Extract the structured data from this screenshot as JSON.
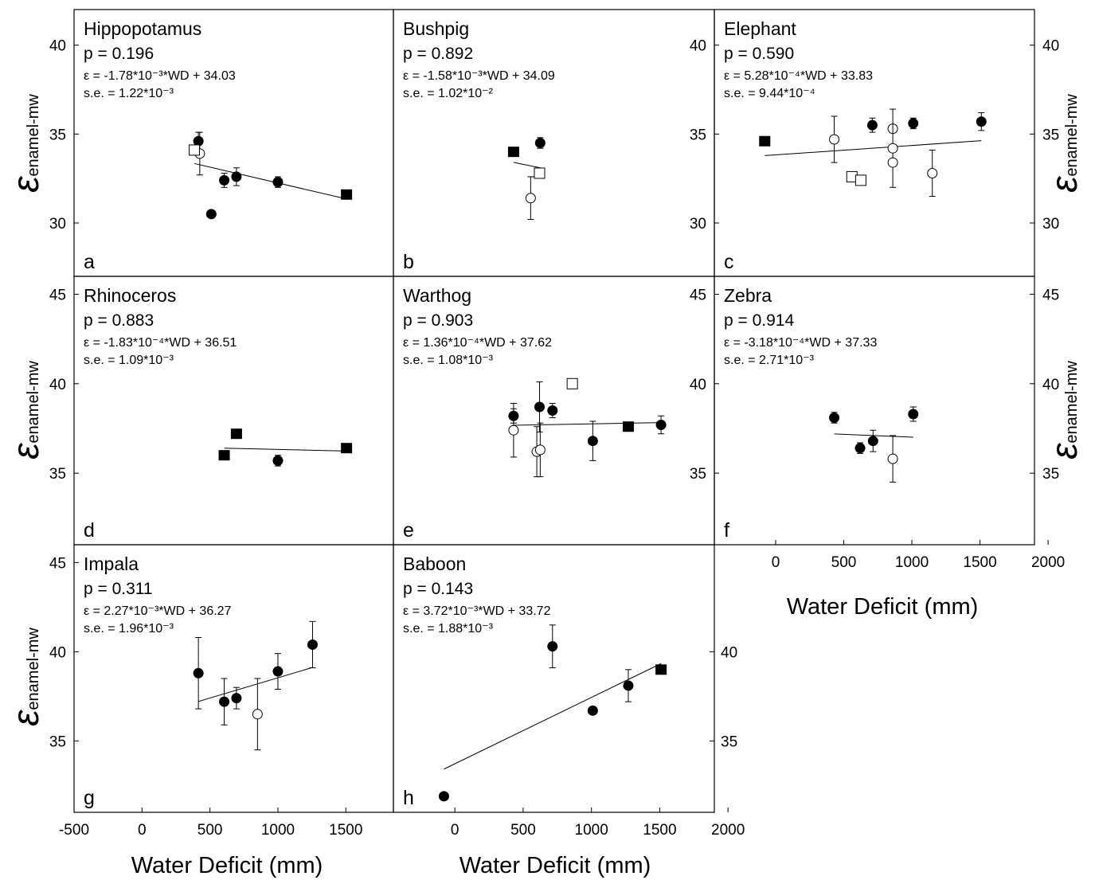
{
  "figure": {
    "x_axis_label": "Water Deficit (mm)",
    "y_axis_symbol": "ε",
    "y_axis_subscript": "enamel-mw"
  },
  "chart_data": [
    {
      "type": "scatter",
      "id": "a",
      "letter": "a",
      "title": "Hippopotamus",
      "stats": {
        "p": "p = 0.196",
        "eq": "ε = -1.78*10⁻³*WD + 34.03",
        "se": "s.e. = 1.22*10⁻³"
      },
      "xlim": [
        -500,
        1850
      ],
      "ylim": [
        27,
        42
      ],
      "yticks": [
        30,
        35,
        40
      ],
      "points": [
        {
          "x": 415,
          "y": 34.6,
          "m": "filled_circle",
          "err": 0.5
        },
        {
          "x": 425,
          "y": 33.9,
          "m": "open_circle",
          "err": 1.2
        },
        {
          "x": 385,
          "y": 34.1,
          "m": "open_square"
        },
        {
          "x": 510,
          "y": 30.5,
          "m": "filled_circle"
        },
        {
          "x": 605,
          "y": 32.4,
          "m": "filled_circle",
          "err": 0.4
        },
        {
          "x": 695,
          "y": 32.6,
          "m": "filled_circle",
          "err": 0.5
        },
        {
          "x": 1000,
          "y": 32.3,
          "m": "filled_circle",
          "err": 0.3
        },
        {
          "x": 1505,
          "y": 31.6,
          "m": "filled_square"
        }
      ],
      "fit": {
        "slope": -0.00178,
        "intercept": 34.03,
        "x": [
          385,
          1510
        ]
      }
    },
    {
      "type": "scatter",
      "id": "b",
      "letter": "b",
      "title": "Bushpig",
      "stats": {
        "p": "p = 0.892",
        "eq": "ε = -1.58*10⁻³*WD + 34.09",
        "se": "s.e. = 1.02*10⁻²"
      },
      "xlim": [
        -450,
        1900
      ],
      "ylim": [
        27,
        42
      ],
      "yticks": [],
      "points": [
        {
          "x": 430,
          "y": 34.0,
          "m": "filled_square"
        },
        {
          "x": 625,
          "y": 34.5,
          "m": "filled_circle",
          "err": 0.3
        },
        {
          "x": 620,
          "y": 32.8,
          "m": "open_square"
        },
        {
          "x": 555,
          "y": 31.4,
          "m": "open_circle",
          "err": 1.2
        }
      ],
      "fit": {
        "slope": -0.00158,
        "intercept": 34.09,
        "x": [
          430,
          625
        ]
      }
    },
    {
      "type": "scatter",
      "id": "c",
      "letter": "c",
      "title": "Elephant",
      "stats": {
        "p": "p = 0.590",
        "eq": "ε = 5.28*10⁻⁴*WD + 33.83",
        "se": "s.e. = 9.44*10⁻⁴"
      },
      "xlim": [
        -450,
        1900
      ],
      "ylim": [
        27,
        42
      ],
      "yticks": [
        30,
        35,
        40
      ],
      "points": [
        {
          "x": -80,
          "y": 34.6,
          "m": "filled_square"
        },
        {
          "x": 430,
          "y": 34.7,
          "m": "open_circle",
          "err": 1.3
        },
        {
          "x": 710,
          "y": 35.5,
          "m": "filled_circle",
          "err": 0.4
        },
        {
          "x": 560,
          "y": 32.6,
          "m": "open_square"
        },
        {
          "x": 625,
          "y": 32.4,
          "m": "open_square"
        },
        {
          "x": 860,
          "y": 35.3,
          "m": "open_circle"
        },
        {
          "x": 860,
          "y": 34.2,
          "m": "open_circle",
          "err": 2.2
        },
        {
          "x": 860,
          "y": 33.4,
          "m": "open_circle"
        },
        {
          "x": 1010,
          "y": 35.6,
          "m": "filled_circle",
          "err": 0.3
        },
        {
          "x": 1150,
          "y": 32.8,
          "m": "open_circle",
          "err": 1.3
        },
        {
          "x": 1510,
          "y": 35.7,
          "m": "filled_circle",
          "err": 0.5
        }
      ],
      "fit": {
        "slope": 0.000528,
        "intercept": 33.83,
        "x": [
          -80,
          1510
        ]
      }
    },
    {
      "type": "scatter",
      "id": "d",
      "letter": "d",
      "title": "Rhinoceros",
      "stats": {
        "p": "p = 0.883",
        "eq": "ε = -1.83*10⁻⁴*WD + 36.51",
        "se": "s.e. = 1.09*10⁻³"
      },
      "xlim": [
        -500,
        1850
      ],
      "ylim": [
        31,
        46
      ],
      "yticks": [
        35,
        40,
        45
      ],
      "points": [
        {
          "x": 605,
          "y": 36.0,
          "m": "filled_square"
        },
        {
          "x": 695,
          "y": 37.2,
          "m": "filled_square"
        },
        {
          "x": 1000,
          "y": 35.7,
          "m": "filled_circle",
          "err": 0.3
        },
        {
          "x": 1505,
          "y": 36.4,
          "m": "filled_square"
        }
      ],
      "fit": {
        "slope": -0.000183,
        "intercept": 36.51,
        "x": [
          605,
          1505
        ]
      }
    },
    {
      "type": "scatter",
      "id": "e",
      "letter": "e",
      "title": "Warthog",
      "stats": {
        "p": "p = 0.903",
        "eq": "ε = 1.36*10⁻⁴*WD + 37.62",
        "se": "s.e. = 1.08*10⁻³"
      },
      "xlim": [
        -450,
        1900
      ],
      "ylim": [
        31,
        46
      ],
      "yticks": [],
      "points": [
        {
          "x": 430,
          "y": 38.2,
          "m": "filled_circle",
          "err": 0.4
        },
        {
          "x": 430,
          "y": 37.4,
          "m": "open_circle",
          "err": 1.5
        },
        {
          "x": 600,
          "y": 36.2,
          "m": "open_circle",
          "err": 1.4
        },
        {
          "x": 620,
          "y": 38.7,
          "m": "filled_circle",
          "err": 1.4
        },
        {
          "x": 625,
          "y": 36.3,
          "m": "open_circle",
          "err": 1.5
        },
        {
          "x": 715,
          "y": 38.5,
          "m": "filled_circle",
          "err": 0.4
        },
        {
          "x": 860,
          "y": 40.0,
          "m": "open_square"
        },
        {
          "x": 1010,
          "y": 36.8,
          "m": "filled_circle",
          "err": 1.1
        },
        {
          "x": 1270,
          "y": 37.6,
          "m": "filled_square"
        },
        {
          "x": 1510,
          "y": 37.7,
          "m": "filled_circle",
          "err": 0.5
        }
      ],
      "fit": {
        "slope": 0.000136,
        "intercept": 37.62,
        "x": [
          430,
          1510
        ]
      }
    },
    {
      "type": "scatter",
      "id": "f",
      "letter": "f",
      "title": "Zebra",
      "stats": {
        "p": "p = 0.914",
        "eq": "ε = -3.18*10⁻⁴*WD + 37.33",
        "se": "s.e. = 2.71*10⁻³"
      },
      "xlim": [
        -450,
        1900
      ],
      "ylim": [
        31,
        46
      ],
      "yticks": [
        35,
        40,
        45
      ],
      "xticks": [
        0,
        500,
        1000,
        1500,
        2000
      ],
      "points": [
        {
          "x": 430,
          "y": 38.1,
          "m": "filled_circle",
          "err": 0.3
        },
        {
          "x": 620,
          "y": 36.4,
          "m": "filled_circle",
          "err": 0.3
        },
        {
          "x": 715,
          "y": 36.8,
          "m": "filled_circle",
          "err": 0.6
        },
        {
          "x": 860,
          "y": 35.8,
          "m": "open_circle",
          "err": 1.3
        },
        {
          "x": 1010,
          "y": 38.3,
          "m": "filled_circle",
          "err": 0.4
        }
      ],
      "fit": {
        "slope": -0.000318,
        "intercept": 37.33,
        "x": [
          430,
          1010
        ]
      }
    },
    {
      "type": "scatter",
      "id": "g",
      "letter": "g",
      "title": "Impala",
      "stats": {
        "p": "p = 0.311",
        "eq": "ε = 2.27*10⁻³*WD + 36.27",
        "se": "s.e. = 1.96*10⁻³"
      },
      "xlim": [
        -500,
        1850
      ],
      "ylim": [
        31,
        46
      ],
      "yticks": [
        35,
        40,
        45
      ],
      "xticks": [
        -500,
        0,
        500,
        1000,
        1500
      ],
      "points": [
        {
          "x": 415,
          "y": 38.8,
          "m": "filled_circle",
          "err": 2.0
        },
        {
          "x": 605,
          "y": 37.2,
          "m": "filled_circle",
          "err": 1.3
        },
        {
          "x": 695,
          "y": 37.4,
          "m": "filled_circle",
          "err": 0.6
        },
        {
          "x": 850,
          "y": 36.5,
          "m": "open_circle",
          "err": 2.0
        },
        {
          "x": 1000,
          "y": 38.9,
          "m": "filled_circle",
          "err": 1.0
        },
        {
          "x": 1255,
          "y": 40.4,
          "m": "filled_circle",
          "err": 1.3
        }
      ],
      "fit": {
        "slope": 0.00227,
        "intercept": 36.27,
        "x": [
          415,
          1255
        ]
      }
    },
    {
      "type": "scatter",
      "id": "h",
      "letter": "h",
      "title": "Baboon",
      "stats": {
        "p": "p = 0.143",
        "eq": "ε = 3.72*10⁻³*WD + 33.72",
        "se": "s.e. = 1.88*10⁻³"
      },
      "xlim": [
        -450,
        1900
      ],
      "ylim": [
        31,
        46
      ],
      "yticks": [
        35,
        40
      ],
      "yticks_side": "right",
      "xticks": [
        0,
        500,
        1000,
        1500,
        2000
      ],
      "points": [
        {
          "x": -80,
          "y": 31.9,
          "m": "filled_circle"
        },
        {
          "x": 715,
          "y": 40.3,
          "m": "filled_circle",
          "err": 1.2
        },
        {
          "x": 1010,
          "y": 36.7,
          "m": "filled_circle",
          "err": 0.2
        },
        {
          "x": 1270,
          "y": 38.1,
          "m": "filled_circle",
          "err": 0.9
        },
        {
          "x": 1510,
          "y": 39.0,
          "m": "filled_square"
        }
      ],
      "fit": {
        "slope": 0.00372,
        "intercept": 33.72,
        "x": [
          -80,
          1510
        ]
      }
    }
  ]
}
